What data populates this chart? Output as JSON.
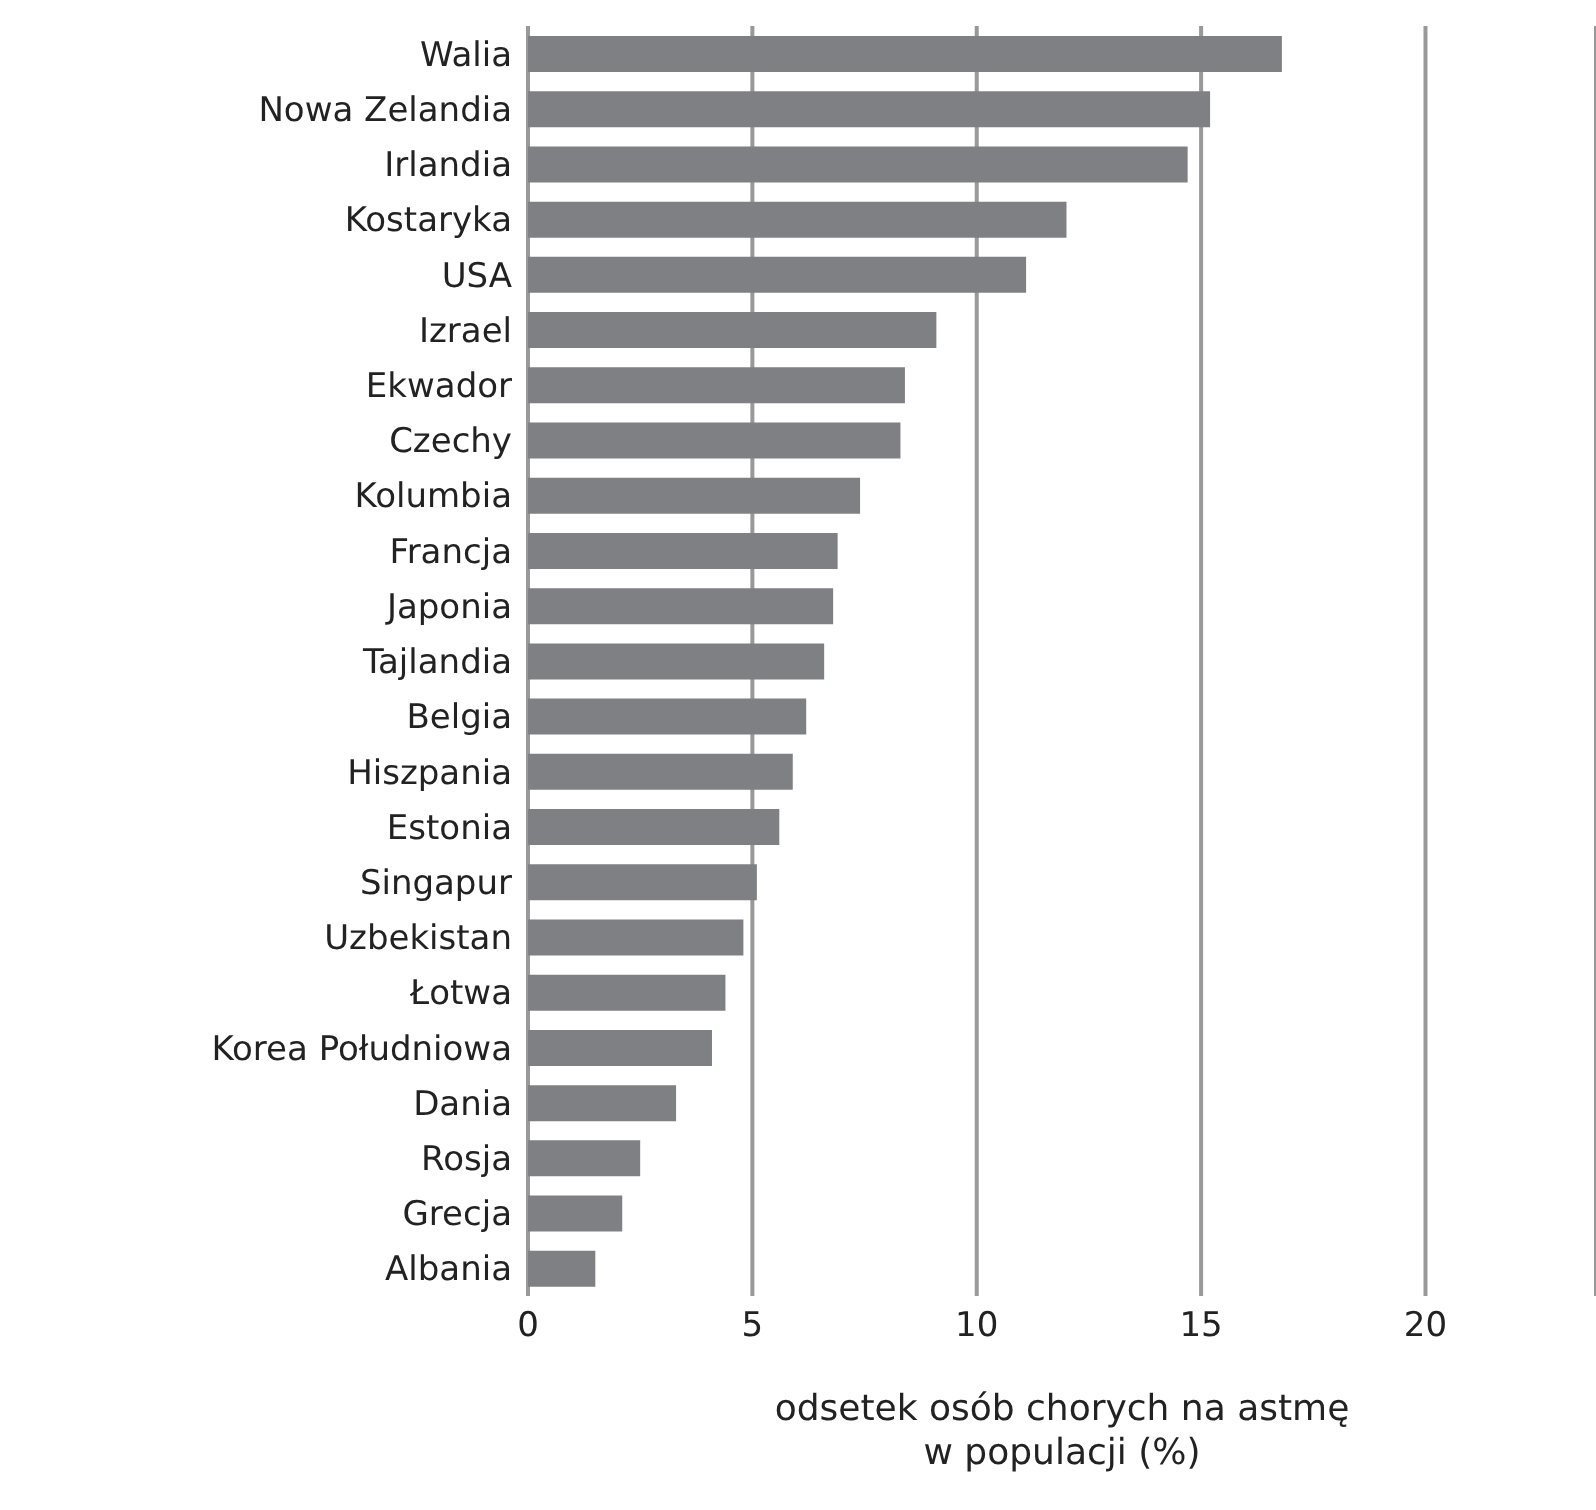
{
  "chart_data": {
    "type": "bar",
    "orientation": "horizontal",
    "xlabel": "odsetek osób chorych na astmę\nw populacji (%)",
    "categories": [
      "Walia",
      "Nowa Zelandia",
      "Irlandia",
      "Kostaryka",
      "USA",
      "Izrael",
      "Ekwador",
      "Czechy",
      "Kolumbia",
      "Francja",
      "Japonia",
      "Tajlandia",
      "Belgia",
      "Hiszpania",
      "Estonia",
      "Singapur",
      "Uzbekistan",
      "Łotwa",
      "Korea Południowa",
      "Dania",
      "Rosja",
      "Grecja",
      "Albania"
    ],
    "values": [
      16.8,
      15.2,
      14.7,
      12.0,
      11.1,
      9.1,
      8.4,
      8.3,
      7.4,
      6.9,
      6.8,
      6.6,
      6.2,
      5.9,
      5.6,
      5.1,
      4.8,
      4.4,
      4.1,
      3.3,
      2.5,
      2.1,
      1.5
    ],
    "color": "#7f8084",
    "xlim": [
      0,
      23.8
    ],
    "xticks": [
      0,
      5,
      10,
      15,
      20
    ],
    "grid": "x"
  }
}
